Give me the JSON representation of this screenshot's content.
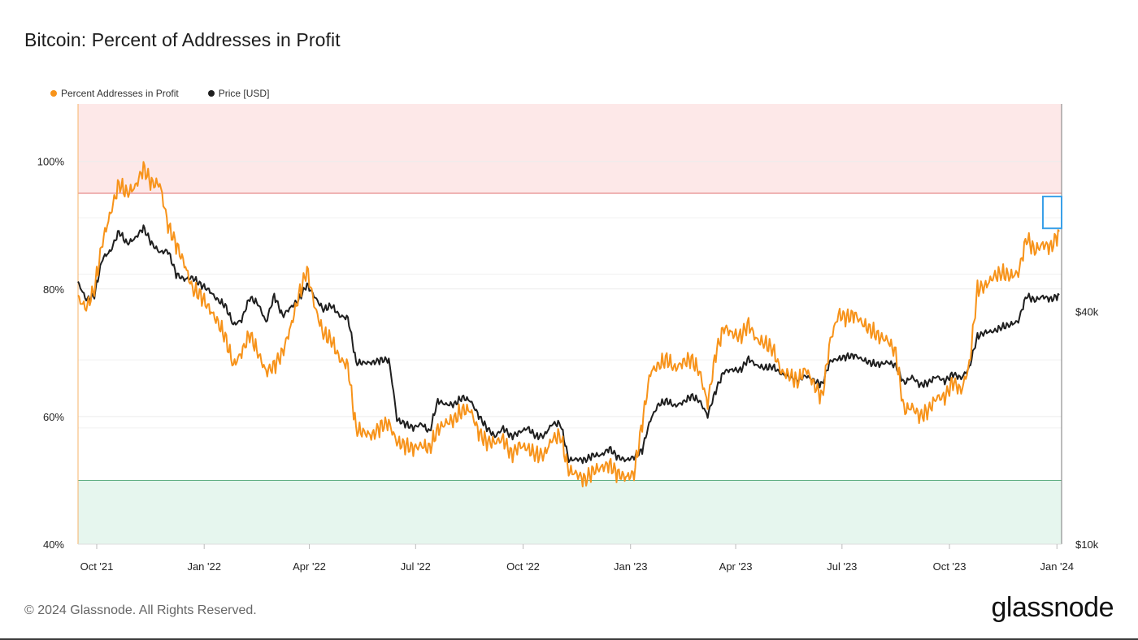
{
  "title": "Bitcoin: Percent of Addresses in Profit",
  "legend": [
    {
      "label": "Percent Addresses in Profit",
      "color": "#f7931a"
    },
    {
      "label": "Price [USD]",
      "color": "#1f1f1f"
    }
  ],
  "footer": {
    "copyright": "© 2024 Glassnode. All Rights Reserved.",
    "brand": "glassnode"
  },
  "chart_data": {
    "type": "line",
    "title": "Bitcoin: Percent of Addresses in Profit",
    "x_range": [
      "2021-09-15",
      "2024-01-05"
    ],
    "x_ticks": [
      {
        "date": "2021-10-01",
        "label": "Oct '21"
      },
      {
        "date": "2022-01-01",
        "label": "Jan '22"
      },
      {
        "date": "2022-04-01",
        "label": "Apr '22"
      },
      {
        "date": "2022-07-01",
        "label": "Jul '22"
      },
      {
        "date": "2022-10-01",
        "label": "Oct '22"
      },
      {
        "date": "2023-01-01",
        "label": "Jan '23"
      },
      {
        "date": "2023-04-01",
        "label": "Apr '23"
      },
      {
        "date": "2023-07-01",
        "label": "Jul '23"
      },
      {
        "date": "2023-10-01",
        "label": "Oct '23"
      },
      {
        "date": "2024-01-01",
        "label": "Jan '24"
      }
    ],
    "y_left": {
      "label": "Percent Addresses in Profit",
      "range": [
        40,
        109
      ],
      "ticks": [
        40,
        60,
        80,
        100
      ],
      "tick_labels": [
        "40%",
        "60%",
        "80%",
        "100%"
      ]
    },
    "y_right": {
      "label": "Price [USD]",
      "scale": "log",
      "range": [
        10000,
        138000
      ],
      "ticks": [
        10000,
        40000
      ],
      "tick_labels": [
        "$10k",
        "$40k"
      ]
    },
    "bands": [
      {
        "name": "high-zone",
        "from": 95,
        "to": 109,
        "color": "#fde8e8",
        "line_color": "#e07070"
      },
      {
        "name": "low-zone",
        "from": 40,
        "to": 50,
        "color": "#e6f6ee",
        "line_color": "#5fae82"
      }
    ],
    "highlight": {
      "from": "2023-12-20",
      "to": "2024-01-05",
      "y_from": 89.5,
      "y_to": 94.5,
      "color": "#3aa0e8"
    },
    "series": [
      {
        "name": "Percent Addresses in Profit",
        "axis": "left",
        "color": "#f7931a",
        "points": [
          [
            "2021-09-15",
            78.5
          ],
          [
            "2021-09-22",
            77
          ],
          [
            "2021-09-29",
            80
          ],
          [
            "2021-10-06",
            87.5
          ],
          [
            "2021-10-13",
            92
          ],
          [
            "2021-10-20",
            96.5
          ],
          [
            "2021-10-27",
            95
          ],
          [
            "2021-11-03",
            96
          ],
          [
            "2021-11-10",
            99
          ],
          [
            "2021-11-17",
            96.5
          ],
          [
            "2021-11-24",
            96.5
          ],
          [
            "2021-12-01",
            90
          ],
          [
            "2021-12-08",
            87
          ],
          [
            "2021-12-15",
            84
          ],
          [
            "2021-12-22",
            80
          ],
          [
            "2021-12-29",
            79
          ],
          [
            "2022-01-05",
            77
          ],
          [
            "2022-01-12",
            75
          ],
          [
            "2022-01-19",
            72.5
          ],
          [
            "2022-01-26",
            68
          ],
          [
            "2022-02-02",
            70
          ],
          [
            "2022-02-09",
            73
          ],
          [
            "2022-02-16",
            70
          ],
          [
            "2022-02-23",
            67
          ],
          [
            "2022-03-02",
            68
          ],
          [
            "2022-03-09",
            70
          ],
          [
            "2022-03-16",
            74
          ],
          [
            "2022-03-23",
            79
          ],
          [
            "2022-03-30",
            83
          ],
          [
            "2022-04-06",
            77
          ],
          [
            "2022-04-13",
            73
          ],
          [
            "2022-04-20",
            72
          ],
          [
            "2022-04-27",
            69
          ],
          [
            "2022-05-04",
            68
          ],
          [
            "2022-05-11",
            58
          ],
          [
            "2022-05-18",
            57.5
          ],
          [
            "2022-05-25",
            57
          ],
          [
            "2022-06-01",
            58.5
          ],
          [
            "2022-06-08",
            59
          ],
          [
            "2022-06-15",
            56
          ],
          [
            "2022-06-22",
            55.5
          ],
          [
            "2022-06-29",
            55
          ],
          [
            "2022-07-06",
            55.5
          ],
          [
            "2022-07-13",
            55
          ],
          [
            "2022-07-20",
            58
          ],
          [
            "2022-07-27",
            59
          ],
          [
            "2022-08-03",
            59.5
          ],
          [
            "2022-08-10",
            61
          ],
          [
            "2022-08-17",
            61
          ],
          [
            "2022-08-24",
            57.5
          ],
          [
            "2022-08-31",
            56
          ],
          [
            "2022-09-07",
            56
          ],
          [
            "2022-09-14",
            56.5
          ],
          [
            "2022-09-21",
            54
          ],
          [
            "2022-09-28",
            55.5
          ],
          [
            "2022-10-05",
            55
          ],
          [
            "2022-10-12",
            54
          ],
          [
            "2022-10-19",
            54
          ],
          [
            "2022-10-26",
            56.5
          ],
          [
            "2022-11-02",
            57
          ],
          [
            "2022-11-09",
            51.5
          ],
          [
            "2022-11-16",
            51
          ],
          [
            "2022-11-23",
            50
          ],
          [
            "2022-11-30",
            51.5
          ],
          [
            "2022-12-07",
            52
          ],
          [
            "2022-12-14",
            52.5
          ],
          [
            "2022-12-21",
            51
          ],
          [
            "2022-12-28",
            50.5
          ],
          [
            "2023-01-04",
            51
          ],
          [
            "2023-01-11",
            59
          ],
          [
            "2023-01-18",
            67
          ],
          [
            "2023-01-25",
            68
          ],
          [
            "2023-02-01",
            69
          ],
          [
            "2023-02-08",
            67.5
          ],
          [
            "2023-02-15",
            68.5
          ],
          [
            "2023-02-22",
            69
          ],
          [
            "2023-03-01",
            67
          ],
          [
            "2023-03-08",
            62
          ],
          [
            "2023-03-15",
            70
          ],
          [
            "2023-03-22",
            74
          ],
          [
            "2023-03-29",
            73
          ],
          [
            "2023-04-05",
            72.5
          ],
          [
            "2023-04-12",
            74.5
          ],
          [
            "2023-04-19",
            72
          ],
          [
            "2023-04-26",
            71.5
          ],
          [
            "2023-05-03",
            70.5
          ],
          [
            "2023-05-10",
            67
          ],
          [
            "2023-05-17",
            66.5
          ],
          [
            "2023-05-24",
            65.5
          ],
          [
            "2023-05-31",
            67.5
          ],
          [
            "2023-06-07",
            65
          ],
          [
            "2023-06-14",
            63
          ],
          [
            "2023-06-21",
            72
          ],
          [
            "2023-06-28",
            76
          ],
          [
            "2023-07-05",
            75.5
          ],
          [
            "2023-07-12",
            76
          ],
          [
            "2023-07-19",
            74.5
          ],
          [
            "2023-07-26",
            73.5
          ],
          [
            "2023-08-02",
            72.5
          ],
          [
            "2023-08-09",
            72
          ],
          [
            "2023-08-16",
            70
          ],
          [
            "2023-08-23",
            61
          ],
          [
            "2023-08-30",
            61.5
          ],
          [
            "2023-09-06",
            60
          ],
          [
            "2023-09-13",
            61
          ],
          [
            "2023-09-20",
            63
          ],
          [
            "2023-09-27",
            63
          ],
          [
            "2023-10-04",
            65.5
          ],
          [
            "2023-10-11",
            64
          ],
          [
            "2023-10-18",
            68
          ],
          [
            "2023-10-25",
            80
          ],
          [
            "2023-11-01",
            80.5
          ],
          [
            "2023-11-08",
            82
          ],
          [
            "2023-11-15",
            82.5
          ],
          [
            "2023-11-22",
            82
          ],
          [
            "2023-11-29",
            82.5
          ],
          [
            "2023-12-06",
            88
          ],
          [
            "2023-12-13",
            86
          ],
          [
            "2023-12-20",
            87
          ],
          [
            "2023-12-27",
            86.5
          ],
          [
            "2024-01-03",
            89
          ]
        ]
      },
      {
        "name": "Price [USD]",
        "axis": "right",
        "color": "#1f1f1f",
        "points": [
          [
            "2021-09-15",
            47500
          ],
          [
            "2021-09-22",
            43000
          ],
          [
            "2021-09-29",
            44000
          ],
          [
            "2021-10-06",
            55000
          ],
          [
            "2021-10-13",
            57500
          ],
          [
            "2021-10-20",
            64500
          ],
          [
            "2021-10-27",
            60000
          ],
          [
            "2021-11-03",
            62000
          ],
          [
            "2021-11-10",
            66000
          ],
          [
            "2021-11-17",
            60000
          ],
          [
            "2021-11-24",
            57000
          ],
          [
            "2021-12-01",
            57500
          ],
          [
            "2021-12-08",
            50000
          ],
          [
            "2021-12-15",
            48500
          ],
          [
            "2021-12-22",
            49000
          ],
          [
            "2021-12-29",
            47000
          ],
          [
            "2022-01-05",
            45500
          ],
          [
            "2022-01-12",
            43000
          ],
          [
            "2022-01-19",
            41500
          ],
          [
            "2022-01-26",
            37000
          ],
          [
            "2022-02-02",
            38000
          ],
          [
            "2022-02-09",
            43500
          ],
          [
            "2022-02-16",
            42000
          ],
          [
            "2022-02-23",
            37500
          ],
          [
            "2022-03-02",
            44000
          ],
          [
            "2022-03-09",
            39000
          ],
          [
            "2022-03-16",
            41000
          ],
          [
            "2022-03-23",
            43000
          ],
          [
            "2022-03-30",
            47000
          ],
          [
            "2022-04-06",
            43500
          ],
          [
            "2022-04-13",
            40500
          ],
          [
            "2022-04-20",
            41500
          ],
          [
            "2022-04-27",
            39000
          ],
          [
            "2022-05-04",
            38500
          ],
          [
            "2022-05-11",
            29500
          ],
          [
            "2022-05-18",
            29500
          ],
          [
            "2022-05-25",
            29500
          ],
          [
            "2022-06-01",
            30000
          ],
          [
            "2022-06-08",
            30000
          ],
          [
            "2022-06-15",
            21000
          ],
          [
            "2022-06-22",
            20500
          ],
          [
            "2022-06-29",
            20000
          ],
          [
            "2022-07-06",
            20500
          ],
          [
            "2022-07-13",
            19500
          ],
          [
            "2022-07-20",
            23500
          ],
          [
            "2022-07-27",
            23000
          ],
          [
            "2022-08-03",
            23000
          ],
          [
            "2022-08-10",
            24000
          ],
          [
            "2022-08-17",
            23500
          ],
          [
            "2022-08-24",
            21500
          ],
          [
            "2022-08-31",
            20000
          ],
          [
            "2022-09-07",
            19000
          ],
          [
            "2022-09-14",
            20000
          ],
          [
            "2022-09-21",
            19000
          ],
          [
            "2022-09-28",
            19500
          ],
          [
            "2022-10-05",
            20000
          ],
          [
            "2022-10-12",
            19000
          ],
          [
            "2022-10-19",
            19100
          ],
          [
            "2022-10-26",
            20500
          ],
          [
            "2022-11-02",
            20500
          ],
          [
            "2022-11-09",
            16500
          ],
          [
            "2022-11-16",
            16600
          ],
          [
            "2022-11-23",
            16500
          ],
          [
            "2022-11-30",
            17000
          ],
          [
            "2022-12-07",
            17000
          ],
          [
            "2022-12-14",
            17700
          ],
          [
            "2022-12-21",
            16800
          ],
          [
            "2022-12-28",
            16500
          ],
          [
            "2023-01-04",
            16800
          ],
          [
            "2023-01-11",
            17500
          ],
          [
            "2023-01-18",
            21000
          ],
          [
            "2023-01-25",
            23000
          ],
          [
            "2023-02-01",
            23500
          ],
          [
            "2023-02-08",
            22800
          ],
          [
            "2023-02-15",
            23300
          ],
          [
            "2023-02-22",
            24200
          ],
          [
            "2023-03-01",
            23500
          ],
          [
            "2023-03-08",
            21500
          ],
          [
            "2023-03-15",
            25000
          ],
          [
            "2023-03-22",
            28000
          ],
          [
            "2023-03-29",
            28300
          ],
          [
            "2023-04-05",
            28200
          ],
          [
            "2023-04-12",
            30200
          ],
          [
            "2023-04-19",
            29000
          ],
          [
            "2023-04-26",
            28600
          ],
          [
            "2023-05-03",
            28800
          ],
          [
            "2023-05-10",
            27600
          ],
          [
            "2023-05-17",
            27100
          ],
          [
            "2023-05-24",
            26600
          ],
          [
            "2023-05-31",
            27300
          ],
          [
            "2023-06-07",
            26500
          ],
          [
            "2023-06-14",
            25900
          ],
          [
            "2023-06-21",
            29800
          ],
          [
            "2023-06-28",
            30200
          ],
          [
            "2023-07-05",
            30600
          ],
          [
            "2023-07-12",
            30800
          ],
          [
            "2023-07-19",
            30000
          ],
          [
            "2023-07-26",
            29400
          ],
          [
            "2023-08-02",
            29200
          ],
          [
            "2023-08-09",
            29600
          ],
          [
            "2023-08-16",
            29000
          ],
          [
            "2023-08-23",
            26100
          ],
          [
            "2023-08-30",
            27100
          ],
          [
            "2023-09-06",
            25800
          ],
          [
            "2023-09-13",
            26200
          ],
          [
            "2023-09-20",
            27200
          ],
          [
            "2023-09-27",
            26400
          ],
          [
            "2023-10-04",
            27600
          ],
          [
            "2023-10-11",
            26900
          ],
          [
            "2023-10-18",
            28600
          ],
          [
            "2023-10-25",
            34500
          ],
          [
            "2023-11-01",
            35400
          ],
          [
            "2023-11-08",
            35600
          ],
          [
            "2023-11-15",
            36500
          ],
          [
            "2023-11-22",
            37000
          ],
          [
            "2023-11-29",
            37800
          ],
          [
            "2023-12-06",
            44000
          ],
          [
            "2023-12-13",
            42800
          ],
          [
            "2023-12-20",
            43800
          ],
          [
            "2023-12-27",
            43000
          ],
          [
            "2024-01-03",
            44200
          ]
        ]
      }
    ]
  }
}
